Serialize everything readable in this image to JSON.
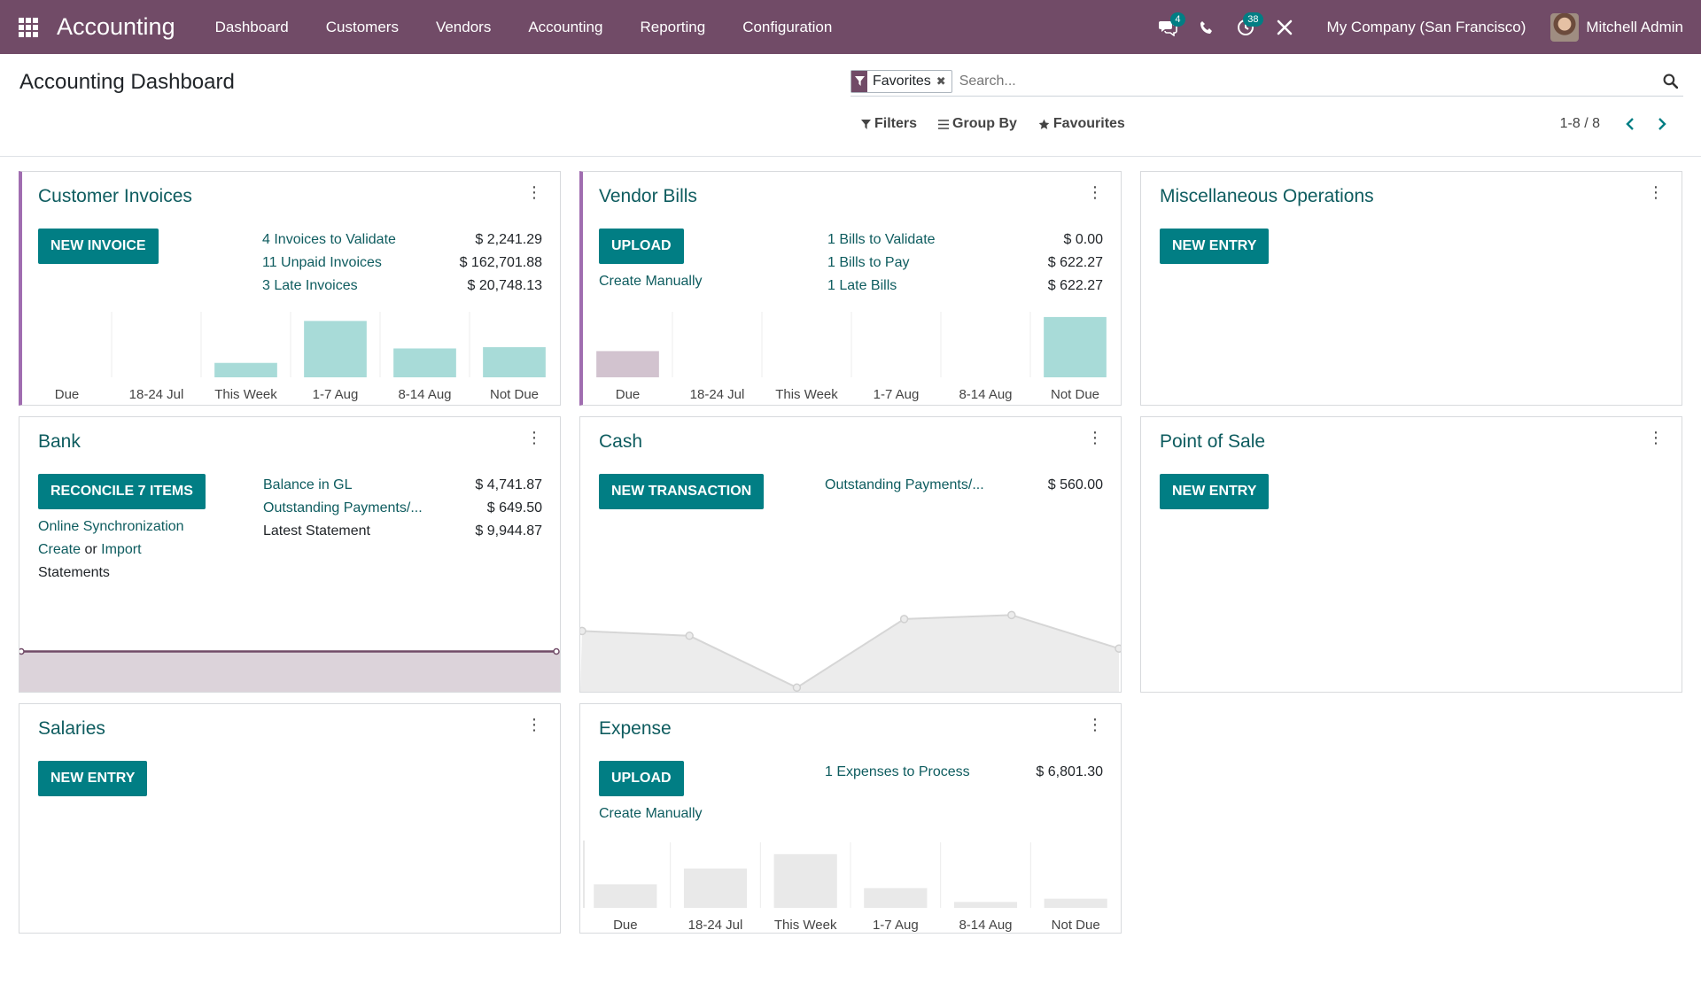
{
  "navbar": {
    "brand": "Accounting",
    "menu": [
      "Dashboard",
      "Customers",
      "Vendors",
      "Accounting",
      "Reporting",
      "Configuration"
    ],
    "messages_count": "4",
    "activities_count": "38",
    "company": "My Company (San Francisco)",
    "user": "Mitchell Admin"
  },
  "control": {
    "title": "Accounting Dashboard",
    "facet": "Favorites",
    "search_placeholder": "Search...",
    "filters_label": "Filters",
    "groupby_label": "Group By",
    "favourites_label": "Favourites",
    "pager": "1-8 / 8"
  },
  "cards": {
    "customer_invoices": {
      "title": "Customer Invoices",
      "button": "NEW INVOICE",
      "rows": [
        {
          "label": "4 Invoices to Validate",
          "amount": "$ 2,241.29"
        },
        {
          "label": "11 Unpaid Invoices",
          "amount": "$ 162,701.88"
        },
        {
          "label": "3 Late Invoices",
          "amount": "$ 20,748.13"
        }
      ]
    },
    "vendor_bills": {
      "title": "Vendor Bills",
      "button": "UPLOAD",
      "secondary": "Create Manually",
      "rows": [
        {
          "label": "1 Bills to Validate",
          "amount": "$ 0.00"
        },
        {
          "label": "1 Bills to Pay",
          "amount": "$ 622.27"
        },
        {
          "label": "1 Late Bills",
          "amount": "$ 622.27"
        }
      ]
    },
    "misc": {
      "title": "Miscellaneous Operations",
      "button": "NEW ENTRY"
    },
    "bank": {
      "title": "Bank",
      "button": "RECONCILE 7 ITEMS",
      "link1": "Online Synchronization",
      "link2": "Create",
      "or": "or",
      "link3": "Import",
      "statements": "Statements",
      "rows": [
        {
          "label": "Balance in GL",
          "amount": "$ 4,741.87"
        },
        {
          "label": "Outstanding Payments/...",
          "amount": "$ 649.50"
        },
        {
          "label": "Latest Statement",
          "amount": "$ 9,944.87"
        }
      ]
    },
    "cash": {
      "title": "Cash",
      "button": "NEW TRANSACTION",
      "rows": [
        {
          "label": "Outstanding Payments/...",
          "amount": "$ 560.00"
        }
      ]
    },
    "pos": {
      "title": "Point of Sale",
      "button": "NEW ENTRY"
    },
    "salaries": {
      "title": "Salaries",
      "button": "NEW ENTRY"
    },
    "expense": {
      "title": "Expense",
      "button": "UPLOAD",
      "secondary": "Create Manually",
      "rows": [
        {
          "label": "1 Expenses to Process",
          "amount": "$ 6,801.30"
        }
      ]
    }
  },
  "colors": {
    "brand": "#714b67",
    "accent": "#017e84",
    "bar_future": "#a8dbd8",
    "bar_past": "#d2c3cf",
    "bar_gray": "#e9e9e9"
  },
  "chart_data": [
    {
      "type": "bar",
      "categories": [
        "Due",
        "18-24 Jul",
        "This Week",
        "1-7 Aug",
        "8-14 Aug",
        "Not Due"
      ],
      "values": [
        0,
        0,
        0.22,
        0.86,
        0.44,
        0.46
      ]
    },
    {
      "type": "bar",
      "categories": [
        "Due",
        "18-24 Jul",
        "This Week",
        "1-7 Aug",
        "8-14 Aug",
        "Not Due"
      ],
      "values": [
        0.4,
        0,
        0,
        0,
        0,
        0.92
      ]
    },
    {
      "type": "line",
      "values": [
        0.5,
        0.5
      ]
    },
    {
      "type": "area",
      "values": [
        0.74,
        0.68,
        0.03,
        0.89,
        0.94,
        0.52
      ]
    },
    {
      "type": "bar",
      "categories": [
        "Due",
        "18-24 Jul",
        "This Week",
        "1-7 Aug",
        "8-14 Aug",
        "Not Due"
      ],
      "values": [
        0.36,
        0.6,
        0.82,
        0.3,
        0.09,
        0.14
      ]
    }
  ]
}
